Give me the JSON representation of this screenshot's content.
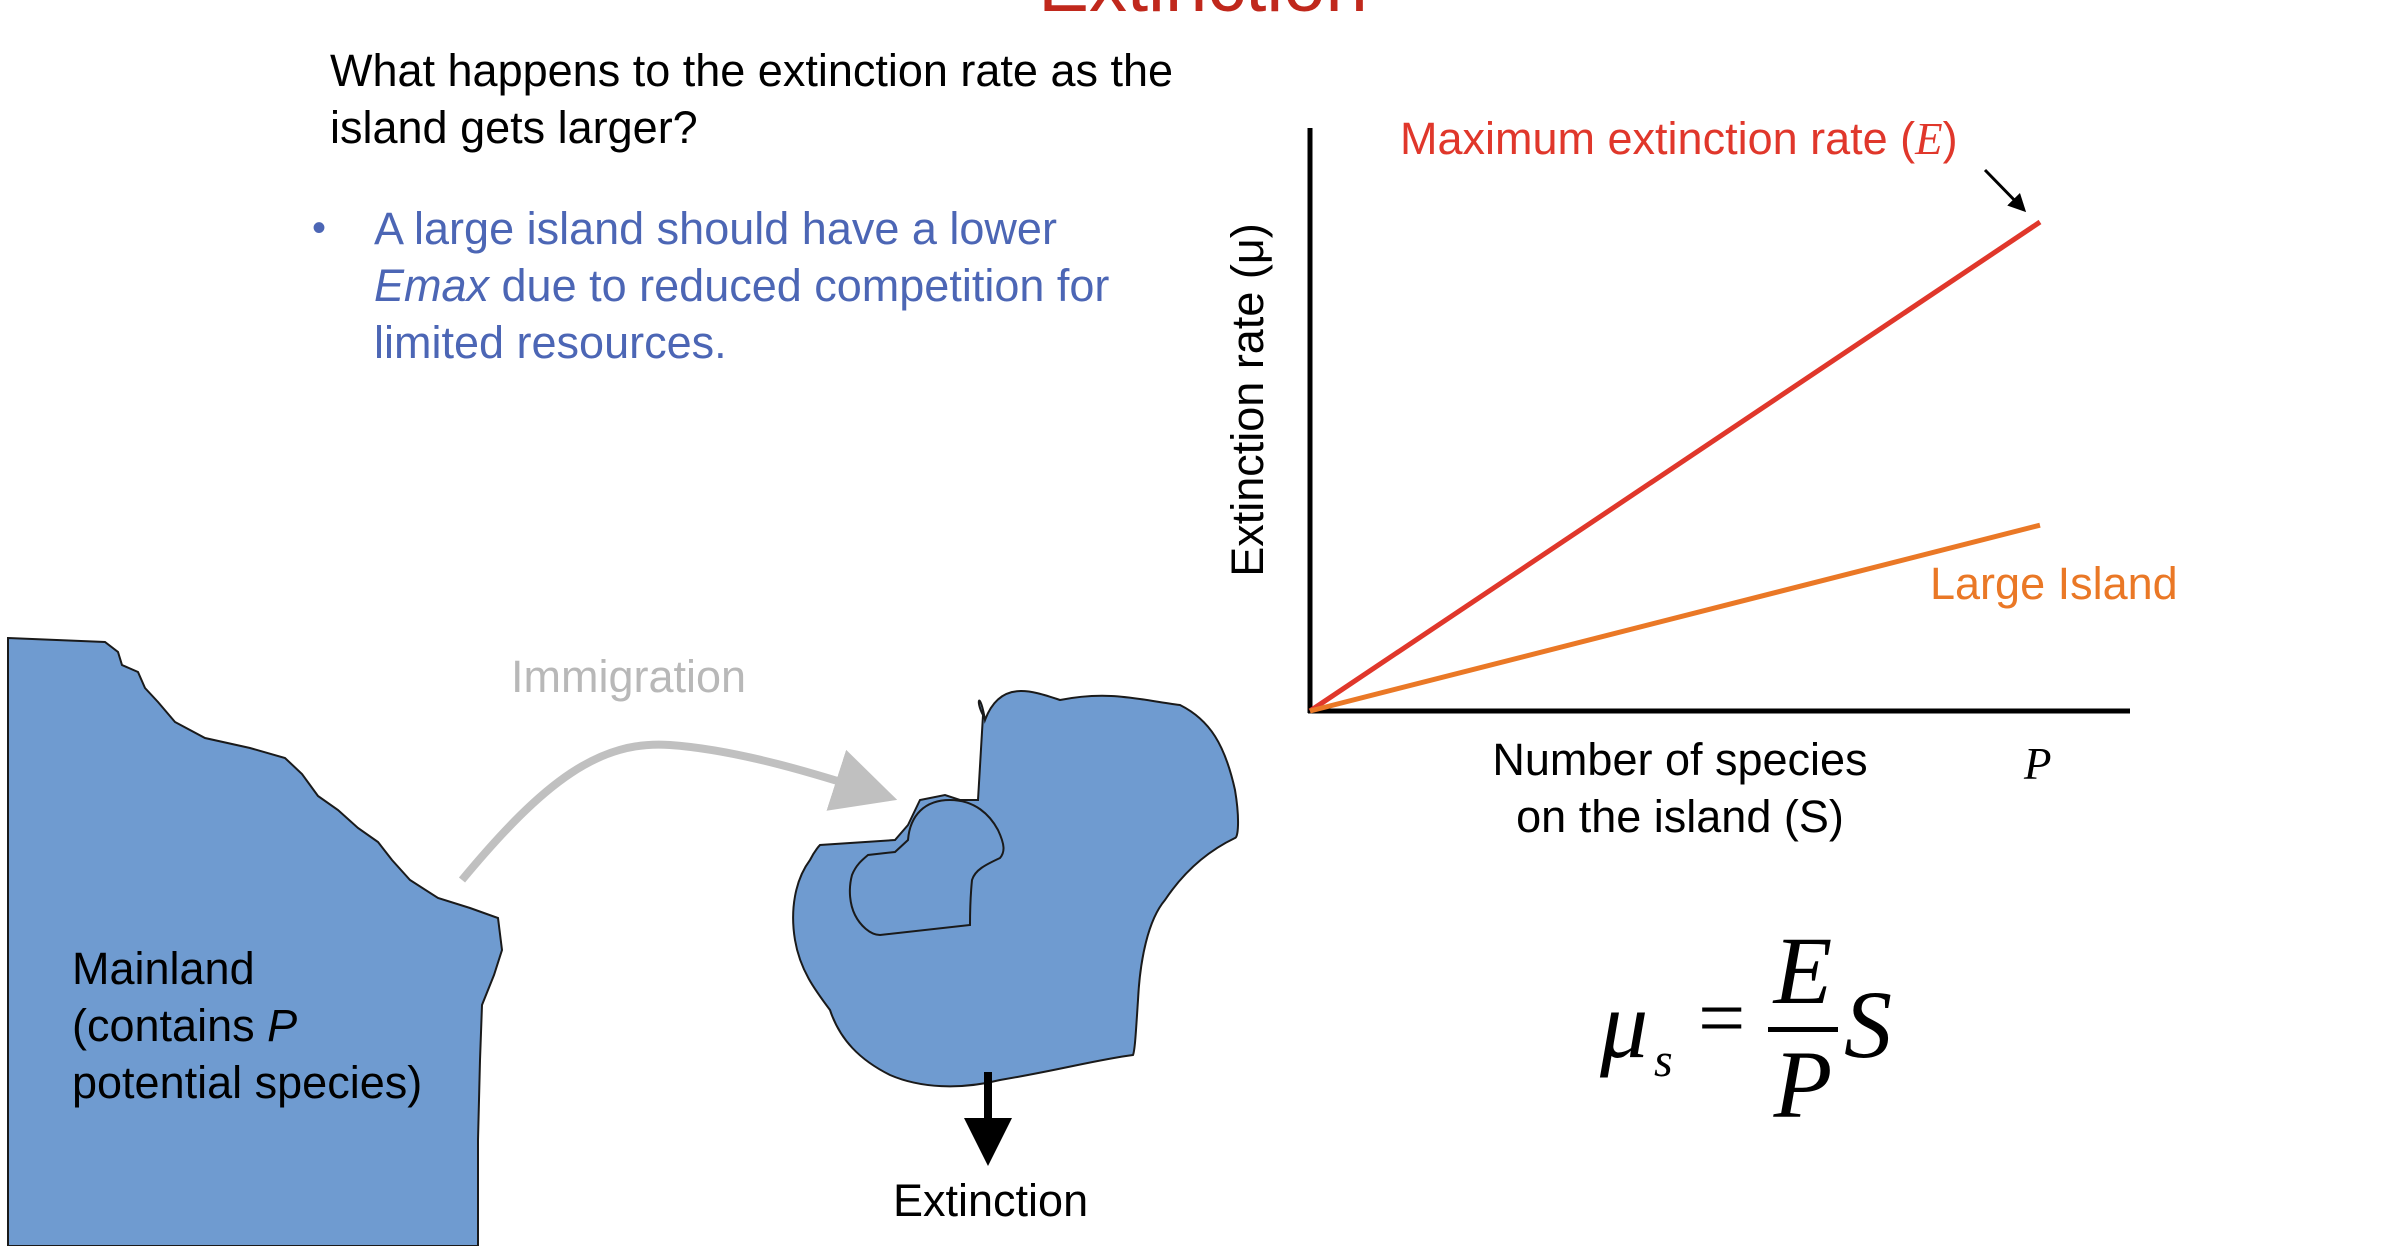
{
  "slide": {
    "title": "Extinction",
    "question": "What happens to the extinction rate as the island gets larger?",
    "bullet": {
      "marker": "•",
      "text_before": "A large island should have a lower ",
      "emphasis": "Emax",
      "text_after": " due to reduced competition for limited resources."
    }
  },
  "diagram": {
    "mainland": {
      "line1": "Mainland",
      "line2_before": "(contains ",
      "line2_italic": "P",
      "line3": "potential species)"
    },
    "immigration_label": "Immigration",
    "extinction_label": "Extinction"
  },
  "chart_data": {
    "type": "line",
    "title": "",
    "ylabel": "Extinction rate (μ)",
    "xlabel": "Number of species on the island (S)",
    "x_tick_labels": [
      "P"
    ],
    "series": [
      {
        "name": "Maximum extinction rate (E)",
        "color": "#e0372b",
        "x": [
          0,
          1
        ],
        "y": [
          0,
          1.0
        ]
      },
      {
        "name": "Large Island",
        "color": "#ea7826",
        "x": [
          0,
          1
        ],
        "y": [
          0,
          0.38
        ]
      }
    ],
    "annotations": {
      "max_label_text": "Maximum extinction rate (",
      "max_label_symbol": "E",
      "max_label_close": ")",
      "large_label": "Large Island"
    }
  },
  "equation": {
    "lhs_symbol": "μ",
    "lhs_subscript": "s",
    "equals": "=",
    "numerator": "E",
    "denominator": "P",
    "multiplier": "S"
  },
  "colors": {
    "title": "#c0281c",
    "bullet": "#4c66b5",
    "land": "#6f9bd0",
    "arrow_gray": "#c0c0c0",
    "max_line": "#e0372b",
    "large_line": "#ea7826"
  }
}
